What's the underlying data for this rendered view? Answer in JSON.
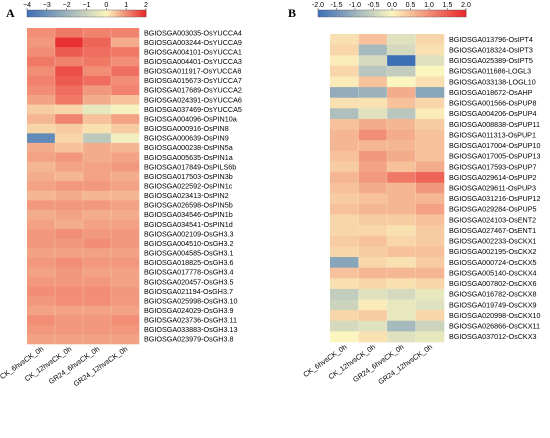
{
  "palette": {
    "low": "#3d6fb6",
    "mid": "#fbf5c0",
    "high": "#e8262a"
  },
  "chart_data": [
    {
      "type": "heatmap",
      "panel": "A",
      "colorbar": {
        "range": [
          -4,
          2
        ],
        "ticks": [
          "−4",
          "−3",
          "−2",
          "−1",
          "0",
          "1",
          "2"
        ],
        "tick_values": [
          -4,
          -3,
          -2,
          -1,
          0,
          1,
          2
        ]
      },
      "columns": [
        "CK_6hvsCK_0h",
        "CK_12hvsCK_0h",
        "GR24_6hvsCK_0h",
        "GR24_12hvsCK_0h"
      ],
      "rows": [
        "BGIOSGA003035-OsYUCCA4",
        "BGIOSGA003244-OsYUCCA9",
        "BGIOSGA004101-OsYUCCA1",
        "BGIOSGA004401-OsYUCCA3",
        "BGIOSGA011917-OsYUCCA8",
        "BGIOSGA015673-OsYUCCA7",
        "BGIOSGA017689-OsYUCCA2",
        "BGIOSGA024391-OsYUCCA6",
        "BGIOSGA037469-OsYUCCA5",
        "BGIOSGA004096-OsPIN10a",
        "BGIOSGA000916-OsPIN8",
        "BGIOSGA000639-OsPIN9",
        "BGIOSGA000238-OsPIN5a",
        "BGIOSGA005635-OsPIN1a",
        "BGIOSGA017849-OsPILS6b",
        "BGIOSGA017503-OsPIN3b",
        "BGIOSGA022592-OsPIN1c",
        "BGIOSGA023413-OsPIN2",
        "BGIOSGA026598-OsPIN5b",
        "BGIOSGA034546-OsPIN1b",
        "BGIOSGA034541-OsPIN1d",
        "BGIOSGA002109-OsGH3.3",
        "BGIOSGA004510-OsGH3.2",
        "BGIOSGA004585-OsGH3.1",
        "BGIOSGA018825-OsGH3.6",
        "BGIOSGA017778-OsGH3.4",
        "BGIOSGA020457-OsGH3.5",
        "BGIOSGA021194-OsGH3.7",
        "BGIOSGA025998-OsGH3.10",
        "BGIOSGA024029-OsGH3.9",
        "BGIOSGA023736-OsGH3.11",
        "BGIOSGA033883-OsGH3.13",
        "BGIOSGA023979-OsGH3.8"
      ],
      "values": [
        [
          1.0,
          1.2,
          1.1,
          1.1
        ],
        [
          0.9,
          1.9,
          1.4,
          0.7
        ],
        [
          1.0,
          1.5,
          1.3,
          1.2
        ],
        [
          1.2,
          1.1,
          1.2,
          1.0
        ],
        [
          1.0,
          1.6,
          1.0,
          1.3
        ],
        [
          1.1,
          1.5,
          1.3,
          1.0
        ],
        [
          1.0,
          1.3,
          0.9,
          1.1
        ],
        [
          0.8,
          1.2,
          0.7,
          0.5
        ],
        [
          0.4,
          0.3,
          -0.4,
          -0.1
        ],
        [
          0.6,
          1.1,
          0.5,
          0.8
        ],
        [
          0.3,
          0.4,
          0.2,
          0.4
        ],
        [
          -3.2,
          0.3,
          -1.3,
          -0.2
        ],
        [
          0.7,
          0.5,
          0.7,
          0.6
        ],
        [
          0.8,
          0.9,
          0.7,
          0.8
        ],
        [
          0.6,
          0.8,
          0.8,
          0.9
        ],
        [
          0.7,
          0.6,
          0.8,
          0.7
        ],
        [
          0.8,
          0.9,
          0.9,
          0.8
        ],
        [
          0.6,
          0.7,
          0.6,
          0.6
        ],
        [
          0.9,
          0.9,
          0.9,
          0.8
        ],
        [
          0.7,
          0.8,
          0.7,
          0.7
        ],
        [
          0.8,
          0.7,
          0.8,
          0.8
        ],
        [
          0.9,
          1.0,
          0.9,
          0.9
        ],
        [
          0.9,
          0.9,
          1.0,
          0.9
        ],
        [
          0.8,
          0.8,
          0.8,
          0.8
        ],
        [
          0.9,
          1.0,
          0.9,
          0.9
        ],
        [
          0.8,
          0.9,
          0.8,
          0.8
        ],
        [
          0.9,
          0.9,
          0.9,
          0.8
        ],
        [
          1.0,
          1.0,
          1.0,
          0.9
        ],
        [
          0.9,
          1.0,
          1.0,
          0.9
        ],
        [
          0.8,
          0.8,
          0.8,
          0.8
        ],
        [
          1.0,
          0.9,
          0.9,
          1.0
        ],
        [
          0.9,
          0.9,
          0.9,
          0.9
        ],
        [
          0.8,
          0.8,
          0.8,
          0.8
        ]
      ]
    },
    {
      "type": "heatmap",
      "panel": "B",
      "colorbar": {
        "range": [
          -2,
          2
        ],
        "ticks": [
          "-2.0",
          "-1.5",
          "-1.0",
          "-0.5",
          "0.0",
          "0.5",
          "1.0",
          "1.5",
          "2.0"
        ],
        "tick_values": [
          -2,
          -1.5,
          -1,
          -0.5,
          0,
          0.5,
          1,
          1.5,
          2
        ]
      },
      "columns": [
        "CK_6hvsCK_0h",
        "CK_12hvsCK_0h",
        "GR24_6hvsCK_0h",
        "GR24_12hvsCK_0h"
      ],
      "rows": [
        "BGIOSGA013796-OsIPT4",
        "BGIOSGA018324-OsIPT3",
        "BGIOSGA025389-OsIPT5",
        "BGIOSGA011686-LOGL3",
        "BGIOSGA033138-LOGL10",
        "BGIOSGA018672-OsAHP",
        "BGIOSGA001566-OsPUP8",
        "BGIOSGA004206-OsPUP4",
        "BGIOSGA008838-OsPUP11",
        "BGIOSGA011313-OsPUP1",
        "BGIOSGA017004-OsPUP10",
        "BGIOSGA017005-OsPUP13",
        "BGIOSGA017593-OsPUP7",
        "BGIOSGA029614-OsPUP2",
        "BGIOSGA029611-OsPUP3",
        "BGIOSGA031216-OsPUP12",
        "BGIOSGA029284-OsPUP5",
        "BGIOSGA024103-OsENT2",
        "BGIOSGA027467-OsENT1",
        "BGIOSGA002233-OsCKX1",
        "BGIOSGA002195-OsCKX2",
        "BGIOSGA000724-OsCKX5",
        "BGIOSGA005140-OsCKX4",
        "BGIOSGA007802-OsCKX6",
        "BGIOSGA016782-OsCKX8",
        "BGIOSGA019749-OsCKX9",
        "BGIOSGA020998-OsCKX10",
        "BGIOSGA026866-OsCKX11",
        "BGIOSGA037012-OsCKX3"
      ],
      "values": [
        [
          0.2,
          0.5,
          -0.3,
          0.3
        ],
        [
          0.3,
          -0.9,
          -0.4,
          0.2
        ],
        [
          0.1,
          -0.4,
          -2.0,
          -0.3
        ],
        [
          0.3,
          -0.7,
          -0.6,
          0.0
        ],
        [
          0.1,
          0.5,
          0.0,
          0.2
        ],
        [
          -1.1,
          -1.0,
          0.7,
          -1.2
        ],
        [
          0.2,
          0.2,
          0.5,
          0.3
        ],
        [
          -0.8,
          -0.3,
          -0.7,
          0.1
        ],
        [
          0.5,
          0.7,
          0.6,
          0.4
        ],
        [
          0.6,
          1.0,
          0.7,
          0.5
        ],
        [
          0.6,
          0.6,
          0.6,
          0.5
        ],
        [
          0.5,
          0.9,
          0.7,
          0.5
        ],
        [
          0.4,
          0.8,
          0.5,
          0.7
        ],
        [
          0.6,
          0.9,
          1.2,
          1.4
        ],
        [
          0.5,
          0.7,
          0.6,
          0.9
        ],
        [
          0.4,
          0.5,
          0.6,
          0.6
        ],
        [
          0.5,
          0.6,
          0.6,
          0.8
        ],
        [
          0.3,
          0.4,
          0.4,
          0.5
        ],
        [
          0.3,
          0.3,
          0.2,
          0.4
        ],
        [
          0.4,
          0.5,
          0.3,
          0.4
        ],
        [
          0.3,
          0.4,
          0.5,
          0.5
        ],
        [
          -1.2,
          0.3,
          0.2,
          0.4
        ],
        [
          0.5,
          0.6,
          0.6,
          0.6
        ],
        [
          0.2,
          0.3,
          0.2,
          0.3
        ],
        [
          -0.6,
          -0.3,
          -0.4,
          -0.2
        ],
        [
          -0.5,
          0.1,
          -0.2,
          -0.3
        ],
        [
          0.3,
          0.4,
          -0.2,
          0.3
        ],
        [
          -0.4,
          -0.3,
          -0.9,
          -0.5
        ],
        [
          0.0,
          0.2,
          -0.3,
          -0.2
        ]
      ]
    }
  ]
}
